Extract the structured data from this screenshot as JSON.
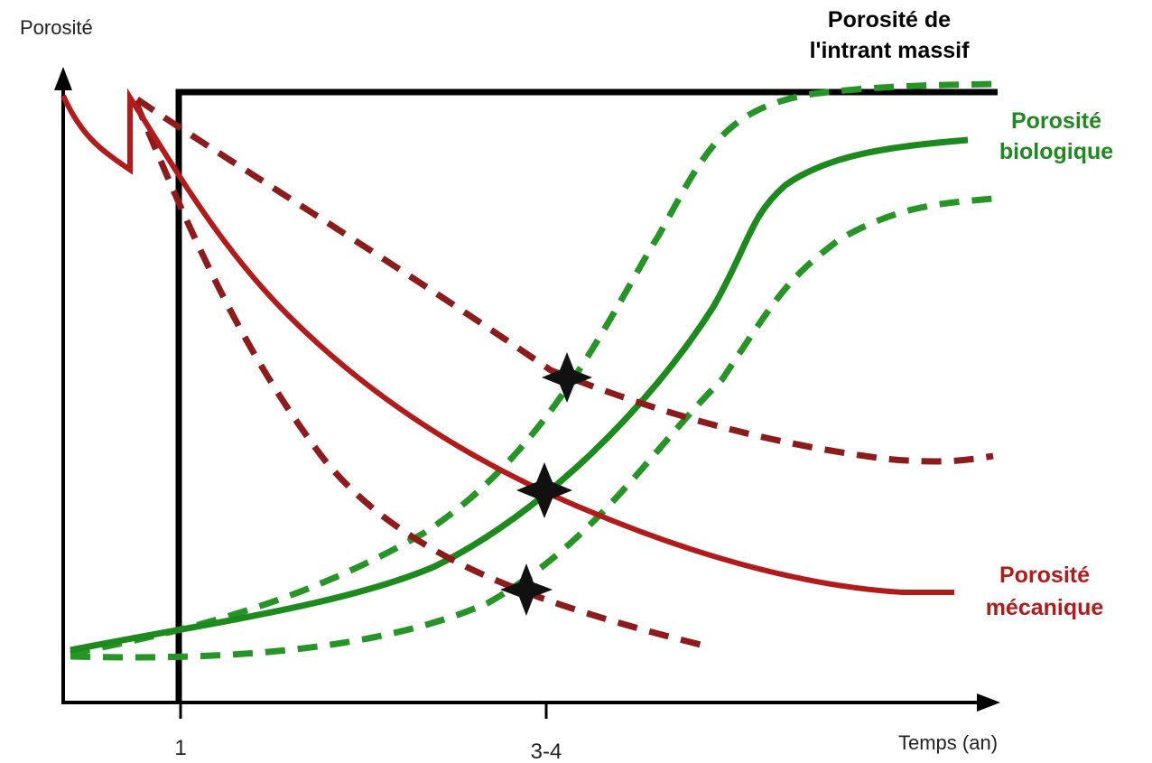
{
  "axes": {
    "y_label": "Porosité",
    "x_label": "Temps (an)",
    "x_ticks": [
      "1",
      "3-4"
    ]
  },
  "labels": {
    "massif": [
      "Porosité de",
      "l'intrant massif"
    ],
    "biologique": [
      "Porosité",
      "biologique"
    ],
    "mecanique": [
      "Porosité",
      "mécanique"
    ]
  },
  "colors": {
    "massif": "#000000",
    "biologique": "#1d8a1d",
    "mecanique": "#b31b1b",
    "mecanique_dashed": "#8e1b1b",
    "biologique_dashed": "#259625",
    "axis": "#000000",
    "star": "#111111"
  },
  "markers": {
    "count": 3,
    "shape": "four-point-star"
  }
}
